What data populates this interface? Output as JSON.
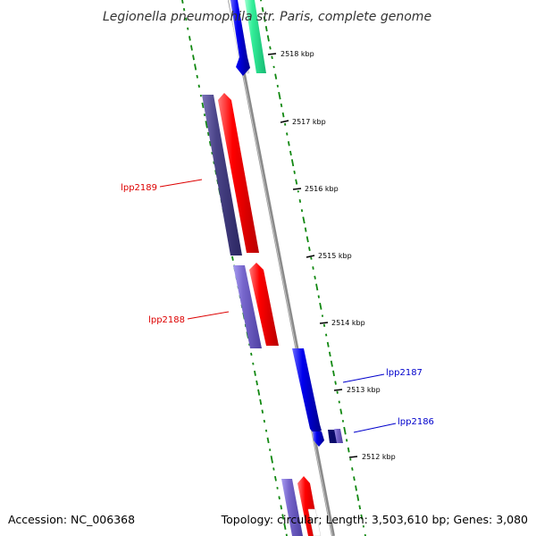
{
  "title": "Legionella pneumophila str. Paris, complete genome",
  "accession": "Accession: NC_006368",
  "summary": "Topology: circular; Length: 3,503,610 bp; Genes: 3,080",
  "tick_labels": [
    "2518 kbp",
    "2517 kbp",
    "2516 kbp",
    "2515 kbp",
    "2514 kbp",
    "2513 kbp",
    "2512 kbp"
  ],
  "gene_labels": [
    {
      "name": "lpp2189",
      "color": "#dd0000"
    },
    {
      "name": "lpp2188",
      "color": "#dd0000"
    },
    {
      "name": "lpp2187",
      "color": "#0000cc"
    },
    {
      "name": "lpp2186",
      "color": "#0000cc"
    }
  ],
  "colors": {
    "backbone": "#8a8a8a",
    "gc_skew": "#118811",
    "forward_cds": "#ff0000",
    "reverse_cds": "#0000ee",
    "forward_blast": "#4a4488",
    "forward_blast_light": "#7766cc",
    "reverse_blast": "#33ee99"
  }
}
